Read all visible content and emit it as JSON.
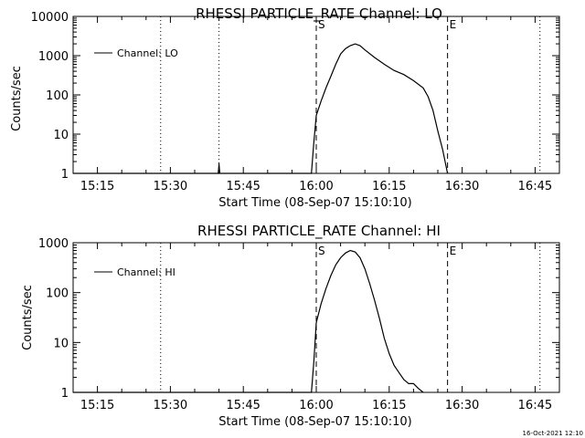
{
  "footer": {
    "timestamp": "16-Oct-2021 12:10"
  },
  "chart_data": [
    {
      "type": "line",
      "title": "RHESSI PARTICLE_RATE Channel: LO",
      "xlabel": "Start Time (08-Sep-07 15:10:10)",
      "ylabel": "Counts/sec",
      "yscale": "log",
      "xlim": [
        "15:10",
        "16:50"
      ],
      "ylim": [
        1,
        10000
      ],
      "x_ticks": [
        "15:15",
        "15:30",
        "15:45",
        "16:00",
        "16:15",
        "16:30",
        "16:45"
      ],
      "y_ticks": [
        "1",
        "10",
        "100",
        "1000",
        "10000"
      ],
      "legend": {
        "placement": "top-left",
        "entries": [
          "Channel: LO"
        ]
      },
      "markers": [
        {
          "label": "",
          "x": "15:28",
          "style": "dotted"
        },
        {
          "label": "",
          "x": "15:40",
          "style": "dotted"
        },
        {
          "label": "S",
          "x": "16:00",
          "style": "dashed"
        },
        {
          "label": "E",
          "x": "16:27",
          "style": "dashed"
        },
        {
          "label": "",
          "x": "16:46",
          "style": "dotted"
        }
      ],
      "spike": {
        "x": "15:40",
        "y": 1.8
      },
      "series": [
        {
          "name": "Channel: LO",
          "x": [
            "15:10",
            "15:59",
            "15:59.5",
            "16:00",
            "16:01",
            "16:02",
            "16:03",
            "16:04",
            "16:05",
            "16:06",
            "16:07",
            "16:08",
            "16:09",
            "16:10",
            "16:12",
            "16:14",
            "16:16",
            "16:18",
            "16:20",
            "16:22",
            "16:23",
            "16:24",
            "16:25",
            "16:26",
            "16:27"
          ],
          "values": [
            1,
            1,
            6,
            30,
            70,
            150,
            300,
            600,
            1100,
            1500,
            1800,
            2000,
            1800,
            1400,
            900,
            600,
            420,
            330,
            230,
            150,
            90,
            40,
            12,
            4,
            1
          ]
        }
      ]
    },
    {
      "type": "line",
      "title": "RHESSI PARTICLE_RATE Channel: HI",
      "xlabel": "Start Time (08-Sep-07 15:10:10)",
      "ylabel": "Counts/sec",
      "yscale": "log",
      "xlim": [
        "15:10",
        "16:50"
      ],
      "ylim": [
        1,
        1000
      ],
      "x_ticks": [
        "15:15",
        "15:30",
        "15:45",
        "16:00",
        "16:15",
        "16:30",
        "16:45"
      ],
      "y_ticks": [
        "1",
        "10",
        "100",
        "1000"
      ],
      "legend": {
        "placement": "top-left",
        "entries": [
          "Channel: HI"
        ]
      },
      "markers": [
        {
          "label": "",
          "x": "15:28",
          "style": "dotted"
        },
        {
          "label": "S",
          "x": "16:00",
          "style": "dashed"
        },
        {
          "label": "E",
          "x": "16:27",
          "style": "dashed"
        },
        {
          "label": "",
          "x": "16:46",
          "style": "dotted"
        }
      ],
      "series": [
        {
          "name": "Channel: HI",
          "x": [
            "15:10",
            "15:59",
            "15:59.5",
            "16:00",
            "16:01",
            "16:02",
            "16:03",
            "16:04",
            "16:05",
            "16:06",
            "16:07",
            "16:08",
            "16:09",
            "16:10",
            "16:11",
            "16:12",
            "16:13",
            "16:14",
            "16:15",
            "16:16",
            "16:17",
            "16:18",
            "16:19",
            "16:20",
            "16:21",
            "16:22"
          ],
          "values": [
            1,
            1,
            4,
            25,
            60,
            120,
            220,
            360,
            500,
            620,
            700,
            650,
            500,
            300,
            150,
            70,
            30,
            12,
            6,
            3.5,
            2.5,
            1.8,
            1.5,
            1.5,
            1.2,
            1
          ]
        }
      ]
    }
  ]
}
